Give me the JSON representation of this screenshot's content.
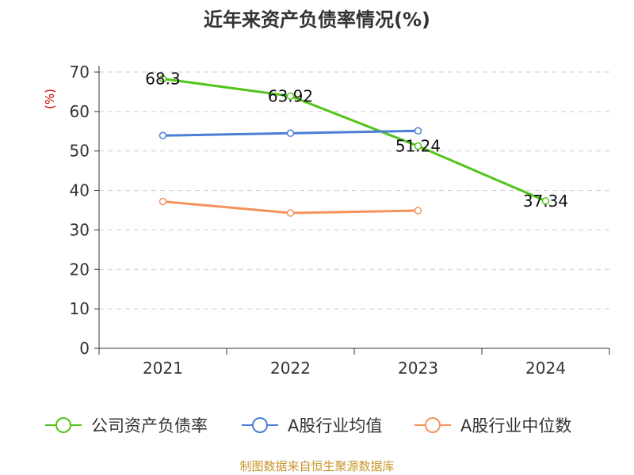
{
  "chart_data": {
    "type": "line",
    "title": "近年来资产负债率情况(%)",
    "ylabel": "(%)",
    "categories": [
      "2021",
      "2022",
      "2023",
      "2024"
    ],
    "ylim": [
      0,
      70
    ],
    "yticks": [
      "0",
      "10",
      "20",
      "30",
      "40",
      "50",
      "60",
      "70"
    ],
    "grid": true,
    "legend_position": "bottom",
    "series": [
      {
        "name": "公司资产负债率",
        "color": "#52c41a",
        "values": [
          68.3,
          63.92,
          51.24,
          37.34
        ],
        "labels": [
          "68.3",
          "63.92",
          "51.24",
          "37.34"
        ]
      },
      {
        "name": "A股行业均值",
        "color": "#4a7fd4",
        "values": [
          53.9,
          54.5,
          55.1,
          null
        ],
        "labels": null
      },
      {
        "name": "A股行业中位数",
        "color": "#f5925c",
        "values": [
          37.2,
          34.3,
          34.9,
          null
        ],
        "labels": null
      }
    ]
  },
  "source": "制图数据来自恒生聚源数据库"
}
